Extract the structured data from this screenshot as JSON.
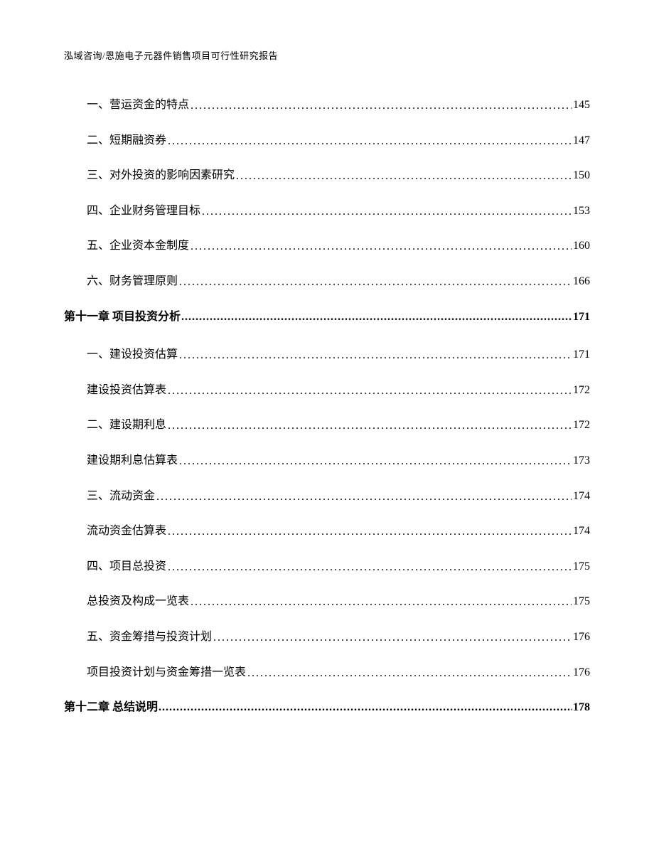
{
  "header_text": "泓域咨询/恩施电子元器件销售项目可行性研究报告",
  "toc": [
    {
      "indent": true,
      "chapter": false,
      "label": "一、营运资金的特点",
      "page": "145"
    },
    {
      "indent": true,
      "chapter": false,
      "label": "二、短期融资券",
      "page": "147"
    },
    {
      "indent": true,
      "chapter": false,
      "label": "三、对外投资的影响因素研究",
      "page": "150"
    },
    {
      "indent": true,
      "chapter": false,
      "label": "四、企业财务管理目标",
      "page": "153"
    },
    {
      "indent": true,
      "chapter": false,
      "label": "五、企业资本金制度",
      "page": "160"
    },
    {
      "indent": true,
      "chapter": false,
      "label": "六、财务管理原则",
      "page": "166"
    },
    {
      "indent": false,
      "chapter": true,
      "label": "第十一章 项目投资分析",
      "page": "171"
    },
    {
      "indent": true,
      "chapter": false,
      "label": "一、建设投资估算",
      "page": "171"
    },
    {
      "indent": true,
      "chapter": false,
      "label": "建设投资估算表",
      "page": "172"
    },
    {
      "indent": true,
      "chapter": false,
      "label": "二、建设期利息",
      "page": "172"
    },
    {
      "indent": true,
      "chapter": false,
      "label": "建设期利息估算表",
      "page": "173"
    },
    {
      "indent": true,
      "chapter": false,
      "label": "三、流动资金",
      "page": "174"
    },
    {
      "indent": true,
      "chapter": false,
      "label": "流动资金估算表",
      "page": "174"
    },
    {
      "indent": true,
      "chapter": false,
      "label": "四、项目总投资",
      "page": "175"
    },
    {
      "indent": true,
      "chapter": false,
      "label": "总投资及构成一览表",
      "page": "175"
    },
    {
      "indent": true,
      "chapter": false,
      "label": "五、资金筹措与投资计划",
      "page": "176"
    },
    {
      "indent": true,
      "chapter": false,
      "label": "项目投资计划与资金筹措一览表",
      "page": "176"
    },
    {
      "indent": false,
      "chapter": true,
      "label": "第十二章 总结说明",
      "page": "178"
    }
  ]
}
